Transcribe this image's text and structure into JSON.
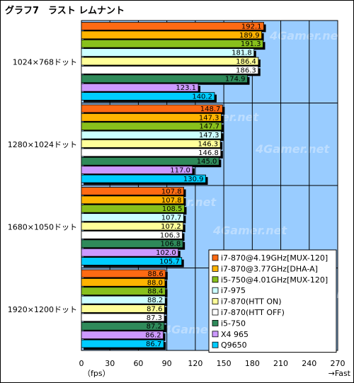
{
  "chart_data": {
    "type": "bar",
    "orientation": "horizontal",
    "title": "グラフ7　ラスト レムナント",
    "categories": [
      "1024×768ドット",
      "1280×1024ドット",
      "1680×1050ドット",
      "1920×1200ドット"
    ],
    "series": [
      {
        "name": "i7-870@4.19GHz[MUX-120]",
        "color": "#ff6a13",
        "values": [
          192.1,
          148.7,
          107.8,
          88.6
        ]
      },
      {
        "name": "i7-870@3.77GHz[DHA-A]",
        "color": "#ffb400",
        "values": [
          189.9,
          147.3,
          107.8,
          88.0
        ]
      },
      {
        "name": "i5-750@4.01GHz[MUX-120]",
        "color": "#88c01c",
        "values": [
          191.3,
          147.7,
          108.5,
          88.4
        ]
      },
      {
        "name": "i7-975",
        "color": "#ccffff",
        "values": [
          181.8,
          147.3,
          107.7,
          88.2
        ]
      },
      {
        "name": "i7-870(HTT ON)",
        "color": "#ffff99",
        "values": [
          186.4,
          146.3,
          107.2,
          87.6
        ]
      },
      {
        "name": "i7-870(HTT OFF)",
        "color": "#ffffff",
        "values": [
          186.3,
          146.8,
          106.3,
          87.3
        ]
      },
      {
        "name": "i5-750",
        "color": "#2f8a5a",
        "values": [
          174.9,
          145.0,
          106.8,
          87.2
        ]
      },
      {
        "name": "X4 965",
        "color": "#cc99ff",
        "values": [
          123.1,
          117.0,
          102.0,
          86.2
        ]
      },
      {
        "name": "Q9650",
        "color": "#00ccff",
        "values": [
          140.2,
          130.9,
          105.7,
          86.7
        ]
      }
    ],
    "xlim": [
      0,
      270
    ],
    "xticks": [
      "0",
      "30",
      "60",
      "90",
      "120",
      "150",
      "180",
      "210",
      "240",
      "270"
    ],
    "unit": "（fps）",
    "fast_label": "→Fast",
    "watermark": "4Gamer.net",
    "grid": true,
    "legend_position": "bottom-right"
  }
}
